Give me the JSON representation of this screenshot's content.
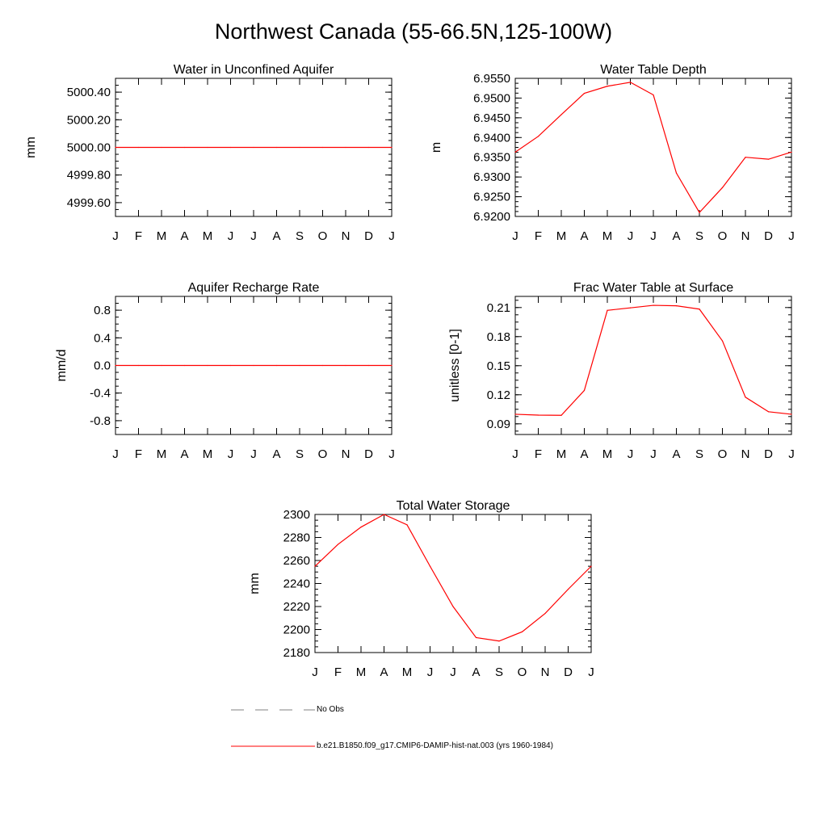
{
  "page_title": "Northwest Canada (55-66.5N,125-100W)",
  "months": [
    "J",
    "F",
    "M",
    "A",
    "M",
    "J",
    "J",
    "A",
    "S",
    "O",
    "N",
    "D",
    "J"
  ],
  "colors": {
    "model": "#ff0000",
    "obs": "#808080",
    "axis": "#000000"
  },
  "legend": {
    "obs_label": "No Obs",
    "model_label": "b.e21.B1850.f09_g17.CMIP6-DAMIP-hist-nat.003 (yrs 1960-1984)"
  },
  "chart_data": [
    {
      "type": "line",
      "title": "Water in Unconfined Aquifer",
      "ylabel": "mm",
      "ylim": [
        4999.5,
        5000.5
      ],
      "yticks": [
        4999.6,
        4999.8,
        5000.0,
        5000.2,
        5000.4
      ],
      "ytick_labels": [
        "4999.60",
        "4999.80",
        "5000.00",
        "5000.20",
        "5000.40"
      ],
      "series": [
        {
          "values": [
            5000.0,
            5000.0,
            5000.0,
            5000.0,
            5000.0,
            5000.0,
            5000.0,
            5000.0,
            5000.0,
            5000.0,
            5000.0,
            5000.0,
            5000.0
          ]
        }
      ]
    },
    {
      "type": "line",
      "title": "Water Table Depth",
      "ylabel": "m",
      "ylim": [
        6.92,
        6.955
      ],
      "yticks": [
        6.92,
        6.925,
        6.93,
        6.935,
        6.94,
        6.945,
        6.95,
        6.955
      ],
      "ytick_labels": [
        "6.9200",
        "6.9250",
        "6.9300",
        "6.9350",
        "6.9400",
        "6.9450",
        "6.9500",
        "6.9550"
      ],
      "series": [
        {
          "values": [
            6.9363,
            6.9403,
            6.9458,
            6.9512,
            6.953,
            6.954,
            6.9508,
            6.931,
            6.921,
            6.9273,
            6.935,
            6.9345,
            6.9363
          ]
        }
      ]
    },
    {
      "type": "line",
      "title": "Aquifer Recharge Rate",
      "ylabel": "mm/d",
      "ylim": [
        -1.0,
        1.0
      ],
      "yticks": [
        -0.8,
        -0.4,
        0.0,
        0.4,
        0.8
      ],
      "ytick_labels": [
        "-0.8",
        "-0.4",
        "0.0",
        "0.4",
        "0.8"
      ],
      "series": [
        {
          "values": [
            0,
            0,
            0,
            0,
            0,
            0,
            0,
            0,
            0,
            0,
            0,
            0,
            0
          ]
        }
      ]
    },
    {
      "type": "line",
      "title": "Frac Water Table at Surface",
      "ylabel": "unitless [0-1]",
      "ylim": [
        0.079,
        0.2215
      ],
      "yticks": [
        0.09,
        0.12,
        0.15,
        0.18,
        0.21
      ],
      "ytick_labels": [
        "0.09",
        "0.12",
        "0.15",
        "0.18",
        "0.21"
      ],
      "series": [
        {
          "values": [
            0.0999,
            0.099,
            0.0988,
            0.1245,
            0.2071,
            0.2097,
            0.2123,
            0.2118,
            0.2084,
            0.1756,
            0.1175,
            0.1025,
            0.0999
          ]
        }
      ]
    },
    {
      "type": "line",
      "title": "Total Water Storage",
      "ylabel": "mm",
      "ylim": [
        2180,
        2300
      ],
      "yticks": [
        2180,
        2200,
        2220,
        2240,
        2260,
        2280,
        2300
      ],
      "ytick_labels": [
        "2180",
        "2200",
        "2220",
        "2240",
        "2260",
        "2280",
        "2300"
      ],
      "series": [
        {
          "values": [
            2255,
            2274,
            2289,
            2300,
            2291,
            2255,
            2220,
            2193,
            2190,
            2198,
            2214,
            2235,
            2255
          ]
        }
      ]
    }
  ]
}
